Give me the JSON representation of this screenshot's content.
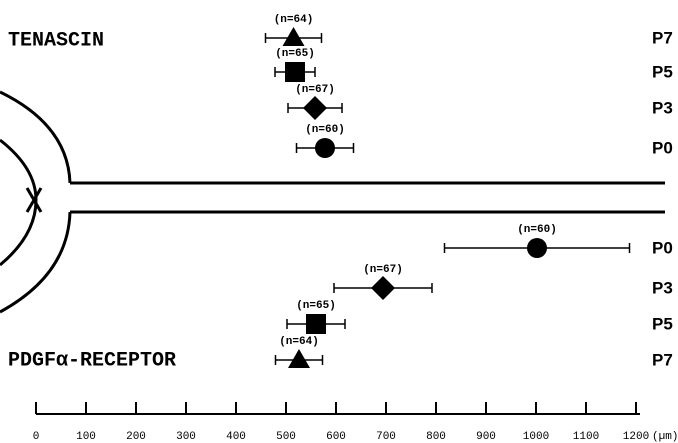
{
  "chart_data": {
    "type": "scatter",
    "xlabel": "(µm)",
    "xlim": [
      0,
      1200
    ],
    "xticks": [
      0,
      100,
      200,
      300,
      400,
      500,
      600,
      700,
      800,
      900,
      1000,
      1100,
      1200
    ],
    "markers": {
      "P0": "circle",
      "P3": "diamond",
      "P5": "square",
      "P7": "triangle"
    },
    "color": "#000000",
    "groups": [
      {
        "name": "TENASCIN",
        "categories": [
          "P7",
          "P5",
          "P3",
          "P0"
        ],
        "values": [
          515,
          518,
          558,
          578
        ],
        "errors": [
          56,
          40,
          54,
          57
        ],
        "n_labels": [
          "(n=64)",
          "(n=65)",
          "(n=67)",
          "(n=60)"
        ]
      },
      {
        "name": "PDGFα-RECEPTOR",
        "categories": [
          "P0",
          "P3",
          "P5",
          "P7"
        ],
        "values": [
          1002,
          694,
          560,
          526
        ],
        "errors": [
          185,
          98,
          58,
          47
        ],
        "n_labels": [
          "(n=60)",
          "(n=67)",
          "(n=65)",
          "(n=64)"
        ]
      }
    ]
  }
}
